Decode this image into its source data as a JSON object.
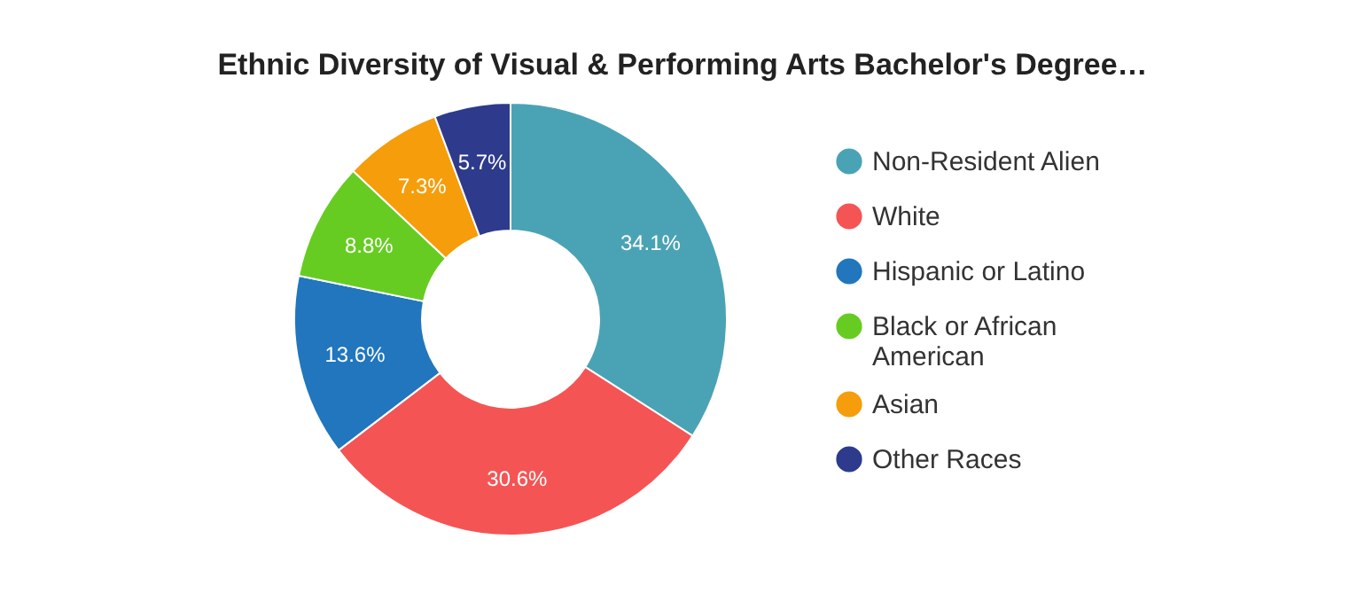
{
  "chart_data": {
    "type": "donut",
    "title": "Ethnic Diversity of Visual & Performing Arts Bachelor's Degree…",
    "categories": [
      "Non-Resident Alien",
      "White",
      "Hispanic or Latino",
      "Black or African American",
      "Asian",
      "Other Races"
    ],
    "values": [
      34.1,
      30.6,
      13.6,
      8.8,
      7.3,
      5.7
    ],
    "colors": [
      "#4aa3b5",
      "#f55454",
      "#2176bd",
      "#66cc22",
      "#f59d0a",
      "#2e3a8c"
    ],
    "value_labels": [
      "34.1%",
      "30.6%",
      "13.6%",
      "8.8%",
      "7.3%",
      "5.7%"
    ],
    "legend": "right"
  }
}
